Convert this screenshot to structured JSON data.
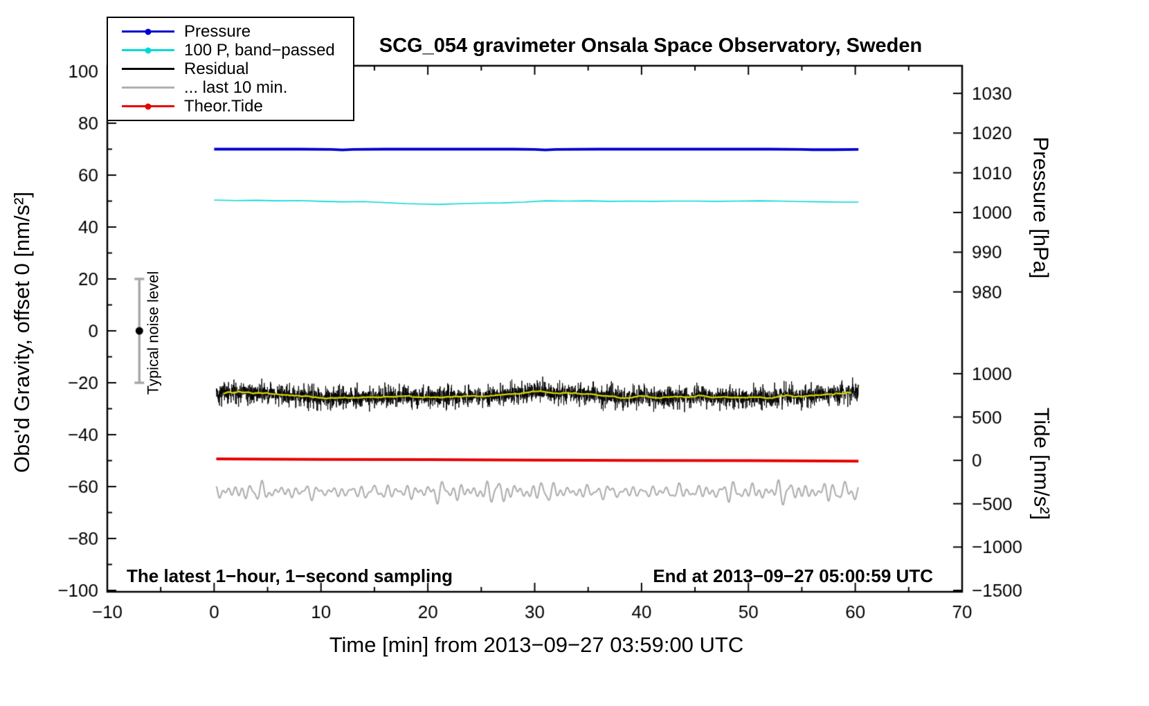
{
  "chart_data": {
    "type": "line",
    "title": "SCG_054 gravimeter Onsala Space Observatory, Sweden",
    "xlabel": "Time [min] from 2013−09−27 03:59:00 UTC",
    "ylabel_left": "Obs'd Gravity, offset 0 [nm/s²]",
    "xlim": [
      -10,
      70
    ],
    "ylim_left": [
      -100,
      100
    ],
    "x_ticks": [
      -10,
      0,
      10,
      20,
      30,
      40,
      50,
      60,
      70
    ],
    "y_ticks_left": [
      -100,
      -80,
      -60,
      -40,
      -20,
      0,
      20,
      40,
      60,
      80,
      100
    ],
    "pressure_axis": {
      "label": "Pressure [hPa]",
      "ticks": [
        {
          "value": 1030,
          "gravity_pos": 91.5
        },
        {
          "value": 1020,
          "gravity_pos": 76.2
        },
        {
          "value": 1010,
          "gravity_pos": 60.9
        },
        {
          "value": 1000,
          "gravity_pos": 45.6
        },
        {
          "value": 990,
          "gravity_pos": 30.3
        },
        {
          "value": 980,
          "gravity_pos": 15.0
        }
      ]
    },
    "tide_axis": {
      "label": "Tide [nm/s²]",
      "ticks": [
        {
          "value": 1000,
          "gravity_pos": -16.5
        },
        {
          "value": 500,
          "gravity_pos": -33.2
        },
        {
          "value": 0,
          "gravity_pos": -49.9
        },
        {
          "value": -500,
          "gravity_pos": -66.6
        },
        {
          "value": -1000,
          "gravity_pos": -83.3
        },
        {
          "value": -1500,
          "gravity_pos": -100.0
        }
      ]
    },
    "series": [
      {
        "name": "Pressure",
        "color": "#0000d0",
        "width": 4,
        "points": [
          [
            0,
            70
          ],
          [
            4,
            70
          ],
          [
            8,
            70
          ],
          [
            11,
            69.9
          ],
          [
            12,
            69.7
          ],
          [
            13,
            69.9
          ],
          [
            16,
            70
          ],
          [
            20,
            70
          ],
          [
            24,
            70
          ],
          [
            28,
            70
          ],
          [
            30,
            69.9
          ],
          [
            31,
            69.7
          ],
          [
            32,
            69.9
          ],
          [
            36,
            70
          ],
          [
            40,
            70
          ],
          [
            44,
            70
          ],
          [
            48,
            70
          ],
          [
            52,
            70
          ],
          [
            55,
            69.9
          ],
          [
            56,
            69.8
          ],
          [
            58,
            69.8
          ],
          [
            60.3,
            69.9
          ]
        ]
      },
      {
        "name": "100 P, band−passed",
        "color": "#00d8d8",
        "width": 1.6,
        "points": [
          [
            0,
            50.4
          ],
          [
            2,
            50.2
          ],
          [
            4,
            50.3
          ],
          [
            6,
            50.1
          ],
          [
            8,
            50.2
          ],
          [
            10,
            49.9
          ],
          [
            12,
            49.7
          ],
          [
            14,
            49.8
          ],
          [
            16,
            49.4
          ],
          [
            18,
            49.0
          ],
          [
            20,
            48.8
          ],
          [
            21,
            48.7
          ],
          [
            23,
            49.0
          ],
          [
            25,
            49.2
          ],
          [
            27,
            49.3
          ],
          [
            29,
            49.6
          ],
          [
            31,
            50.1
          ],
          [
            33,
            50.0
          ],
          [
            35,
            50.1
          ],
          [
            37,
            49.9
          ],
          [
            39,
            50.0
          ],
          [
            41,
            49.9
          ],
          [
            43,
            50.0
          ],
          [
            45,
            50.0
          ],
          [
            47,
            49.9
          ],
          [
            49,
            50.0
          ],
          [
            51,
            50.1
          ],
          [
            53,
            50.0
          ],
          [
            55,
            49.8
          ],
          [
            57,
            49.7
          ],
          [
            59,
            49.6
          ],
          [
            60.3,
            49.6
          ]
        ]
      },
      {
        "name": "Residual",
        "generator": "residual",
        "color": "#000000",
        "width": 1,
        "baseline": -25,
        "noise_amp": 2.2,
        "spike_amp": 4,
        "seed": 42,
        "x_range": [
          0.2,
          60.3
        ],
        "samples": 3600,
        "smooth_color": "#d4d400",
        "smooth_width": 2.2,
        "smooth_window": 80
      },
      {
        "name": "... last 10 min.",
        "generator": "oscillation",
        "color": "#b0b0b0",
        "width": 2.2,
        "baseline": -62,
        "seed": 7,
        "x_range": [
          0.2,
          60.3
        ],
        "samples": 2400,
        "amplitude": 1.15,
        "periods": [
          0.62,
          0.85,
          1.05,
          1.3,
          1.7,
          2.2
        ],
        "component_amps": [
          1,
          0.8,
          0.9,
          0.7,
          0.5,
          0.4
        ],
        "mod_period": 28
      },
      {
        "name": "Theor.Tide",
        "color": "#e80000",
        "width": 4,
        "points": [
          [
            0.2,
            -49.3
          ],
          [
            10,
            -49.5
          ],
          [
            20,
            -49.6
          ],
          [
            30,
            -49.8
          ],
          [
            40,
            -49.9
          ],
          [
            50,
            -50.0
          ],
          [
            60.3,
            -50.2
          ]
        ]
      }
    ],
    "legend": {
      "items": [
        {
          "label": "Pressure",
          "color": "#0000d0",
          "marker": true
        },
        {
          "label": "100 P, band−passed",
          "color": "#00d8d8",
          "marker": true
        },
        {
          "label": "Residual",
          "color": "#000000",
          "marker": false
        },
        {
          "label": "... last 10 min.",
          "color": "#b0b0b0",
          "marker": false
        },
        {
          "label": "Theor.Tide",
          "color": "#e80000",
          "marker": true
        }
      ]
    },
    "noise_bar": {
      "x": -7,
      "center": 0,
      "half_range": 20,
      "label": "Typical noise level"
    },
    "annotations": {
      "sampling": "The latest 1−hour, 1−second sampling",
      "end_time": "End at 2013−09−27 05:00:59 UTC"
    }
  }
}
